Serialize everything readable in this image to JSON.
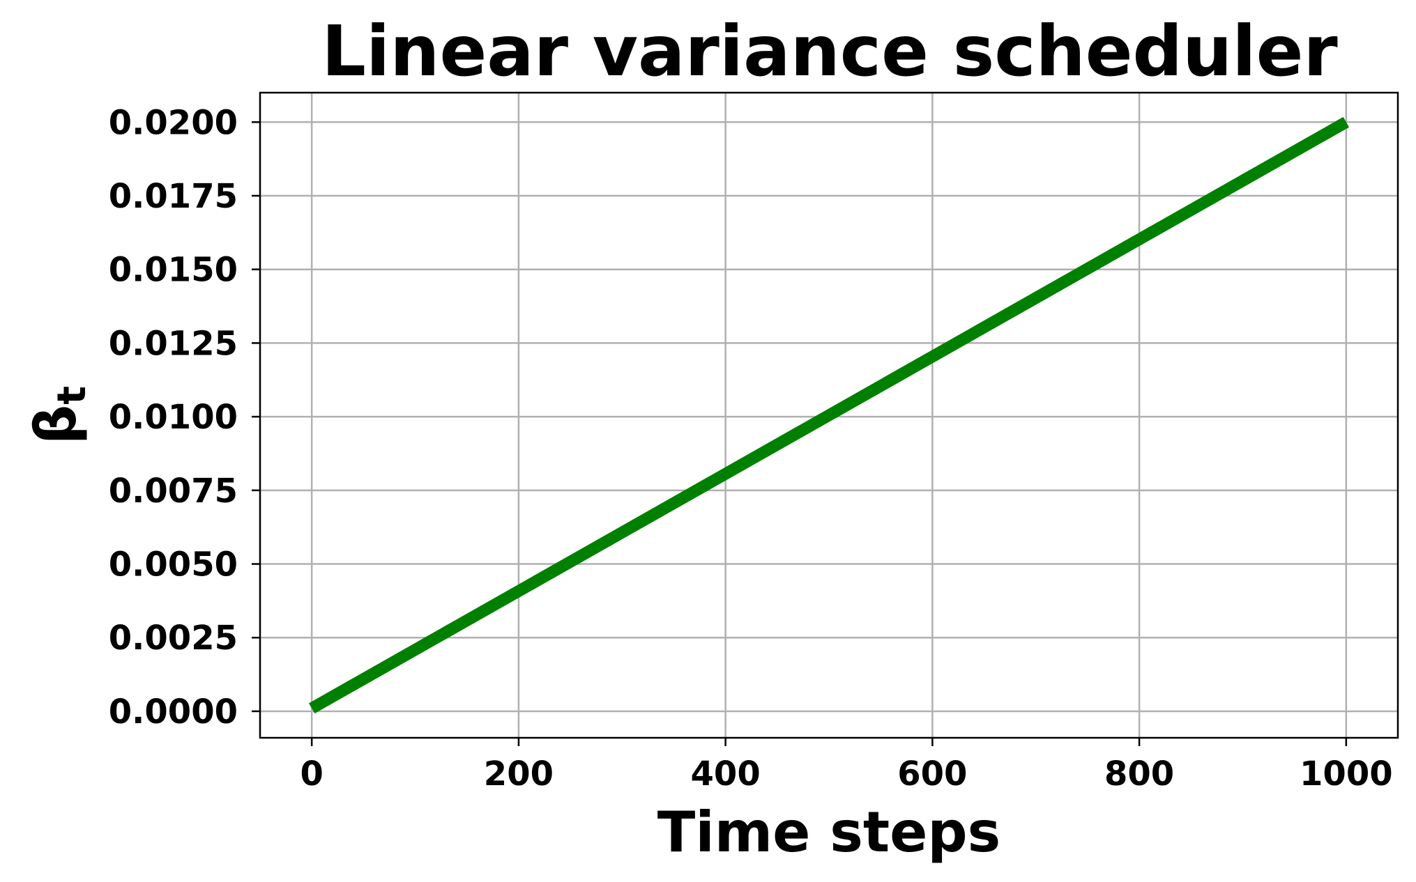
{
  "chart_data": {
    "type": "line",
    "title": "Linear variance scheduler",
    "xlabel": "Time steps",
    "ylabel": "βt",
    "ylabel_main": "β",
    "ylabel_sub": "t",
    "xlim": [
      -50,
      1050
    ],
    "ylim": [
      -0.0009,
      0.021
    ],
    "x_ticks": [
      0,
      200,
      400,
      600,
      800,
      1000
    ],
    "x_tick_labels": [
      "0",
      "200",
      "400",
      "600",
      "800",
      "1000"
    ],
    "y_ticks": [
      0.0,
      0.0025,
      0.005,
      0.0075,
      0.01,
      0.0125,
      0.015,
      0.0175,
      0.02
    ],
    "y_tick_labels": [
      "0.0000",
      "0.0025",
      "0.0050",
      "0.0075",
      "0.0100",
      "0.0125",
      "0.0150",
      "0.0175",
      "0.0200"
    ],
    "grid": true,
    "series": [
      {
        "color": "#008000",
        "x": [
          0,
          1000
        ],
        "y": [
          0.0001,
          0.02
        ]
      }
    ]
  }
}
